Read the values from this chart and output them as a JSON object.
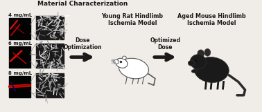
{
  "title": "",
  "background_color": "#f0ede8",
  "material_title": "Material Characterization",
  "concentrations": [
    "4 mg/mL",
    "6 mg/mL",
    "8 mg/mL"
  ],
  "left_panel_title": "Young Rat Hindlimb\nIschemia Model",
  "right_panel_title": "Aged Mouse Hindlimb\nIschemia Model",
  "arrow1_label": "Dose\nOptimization",
  "arrow2_label": "Optimized\nDose",
  "text_color": "#1a1a1a",
  "arrow_color": "#1a1a1a",
  "sem_color_light": "#c8c8c8",
  "sem_color_dark": "#404040",
  "micro_bg": "#050505",
  "micro_red": "#cc2200",
  "label_fontsize": 5.5,
  "title_fontsize": 6.5,
  "conc_fontsize": 5.0
}
